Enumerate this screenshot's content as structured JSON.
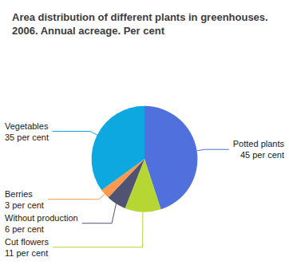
{
  "chart_data": {
    "type": "pie",
    "title": "Area distribution of different plants in greenhouses.\n2006. Annual acreage. Per cent",
    "categories": [
      "Potted plants",
      "Cut flowers",
      "Without production",
      "Berries",
      "Vegetables"
    ],
    "values": [
      45,
      11,
      6,
      3,
      35
    ],
    "value_labels": [
      "45 per cent",
      "11 per cent",
      "6 per cent",
      "3 per cent",
      "35 per cent"
    ],
    "data_labels": true
  }
}
